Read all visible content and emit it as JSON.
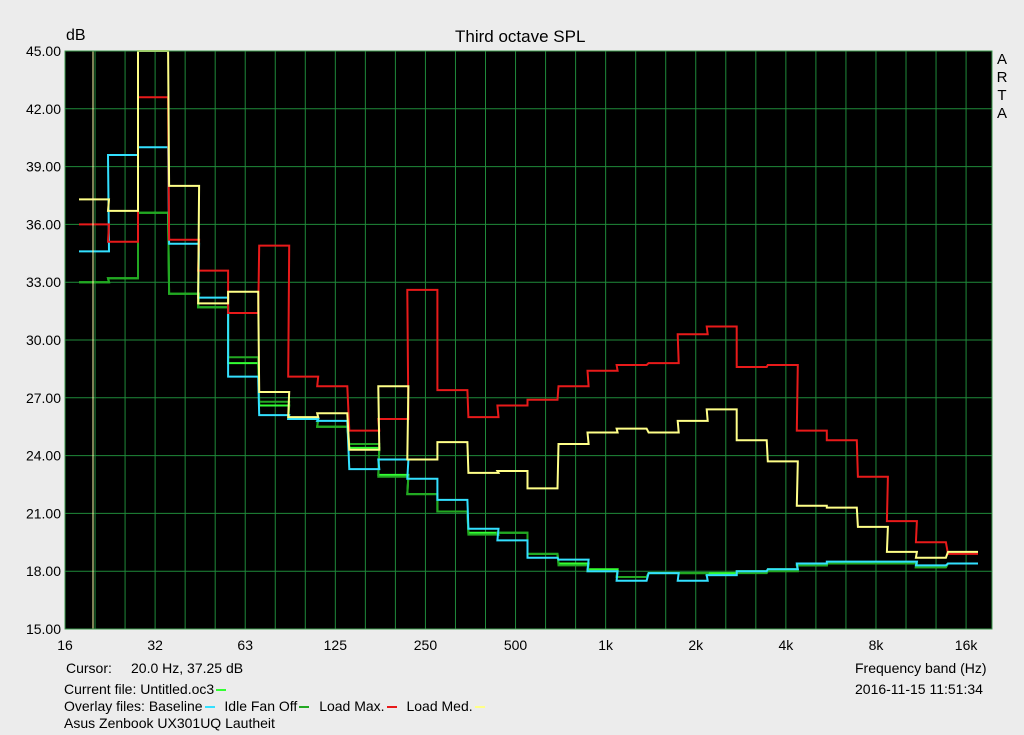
{
  "chart_data": {
    "type": "line",
    "title": "Third octave SPL",
    "ylabel": "dB",
    "xlabel": "Frequency band (Hz)",
    "ylim": [
      15,
      45
    ],
    "y_ticks": [
      "15.00",
      "18.00",
      "21.00",
      "24.00",
      "27.00",
      "30.00",
      "33.00",
      "36.00",
      "39.00",
      "42.00",
      "45.00"
    ],
    "x_ticks": [
      "16",
      "32",
      "63",
      "125",
      "250",
      "500",
      "1k",
      "2k",
      "4k",
      "8k",
      "16k"
    ],
    "x": [
      20,
      25,
      31.5,
      40,
      50,
      63,
      80,
      100,
      125,
      160,
      200,
      250,
      315,
      400,
      500,
      630,
      800,
      1000,
      1250,
      1600,
      2000,
      2500,
      3150,
      4000,
      5000,
      6300,
      8000,
      10000,
      12500,
      16000
    ],
    "background": "#000000",
    "grid": true,
    "grid_color": "#1f8a3a",
    "series": [
      {
        "name": "Current file: Untitled.oc3",
        "color": "#33ff33",
        "values": [
          33.0,
          33.2,
          36.6,
          32.4,
          31.7,
          28.8,
          26.6,
          25.9,
          25.5,
          24.4,
          23.0,
          22.0,
          21.1,
          20.0,
          20.0,
          18.9,
          18.4,
          18.1,
          17.7,
          17.9,
          17.9,
          17.9,
          18.0,
          18.1,
          18.3,
          18.4,
          18.4,
          18.4,
          18.2,
          18.4
        ]
      },
      {
        "name": "Baseline",
        "color": "#33e0ff",
        "values": [
          34.6,
          39.6,
          40.0,
          35.0,
          32.2,
          28.1,
          26.1,
          25.9,
          25.8,
          23.3,
          23.8,
          22.8,
          21.7,
          20.2,
          19.6,
          18.7,
          18.6,
          18.0,
          17.5,
          17.9,
          17.5,
          17.8,
          18.0,
          18.1,
          18.4,
          18.5,
          18.5,
          18.5,
          18.3,
          18.4
        ]
      },
      {
        "name": "Idle Fan Off",
        "color": "#22a822",
        "values": [
          33.0,
          33.2,
          36.6,
          32.4,
          31.7,
          29.1,
          26.8,
          25.9,
          25.5,
          24.6,
          22.9,
          22.0,
          21.1,
          19.9,
          20.0,
          18.9,
          18.3,
          18.0,
          17.7,
          17.9,
          17.9,
          17.8,
          17.9,
          18.0,
          18.3,
          18.4,
          18.4,
          18.4,
          18.2,
          18.4
        ]
      },
      {
        "name": "Load Max.",
        "color": "#e81a1a",
        "values": [
          36.0,
          35.1,
          42.6,
          35.2,
          33.6,
          31.4,
          34.9,
          28.1,
          27.6,
          25.3,
          25.9,
          32.6,
          27.4,
          26.0,
          26.6,
          26.9,
          27.6,
          28.4,
          28.7,
          28.8,
          30.3,
          30.7,
          28.6,
          28.7,
          25.3,
          24.8,
          22.9,
          20.6,
          19.5,
          18.9
        ]
      },
      {
        "name": "Load Med.",
        "color": "#ffff88",
        "values": [
          37.3,
          36.7,
          49.0,
          38.0,
          31.9,
          32.5,
          27.3,
          26.0,
          26.2,
          24.3,
          27.6,
          23.8,
          24.7,
          23.1,
          23.2,
          22.3,
          24.6,
          25.2,
          25.4,
          25.2,
          25.8,
          26.4,
          24.8,
          23.7,
          21.4,
          21.3,
          20.3,
          19.0,
          18.7,
          19.0
        ]
      }
    ]
  },
  "labels": {
    "title": "Third octave SPL",
    "ylabel": "dB",
    "arta": [
      "A",
      "R",
      "T",
      "A"
    ],
    "cursor_label": "Cursor:",
    "cursor_value": "20.0 Hz, 37.25 dB",
    "xlabel": "Frequency band (Hz)",
    "current_file_label": "Current file: Untitled.oc3",
    "timestamp": "2016-11-15  11:51:34",
    "overlay_label": "Overlay files:",
    "overlays": [
      "Baseline",
      "Idle Fan Off",
      "Load Max.",
      "Load Med."
    ],
    "caption": "Asus Zenbook UX301UQ Lautheit"
  },
  "colors": {
    "current": "#33ff33",
    "baseline": "#33e0ff",
    "idle": "#22a822",
    "loadmax": "#e81a1a",
    "loadmed": "#ffff88",
    "cursor_line": "#ffffaa"
  }
}
